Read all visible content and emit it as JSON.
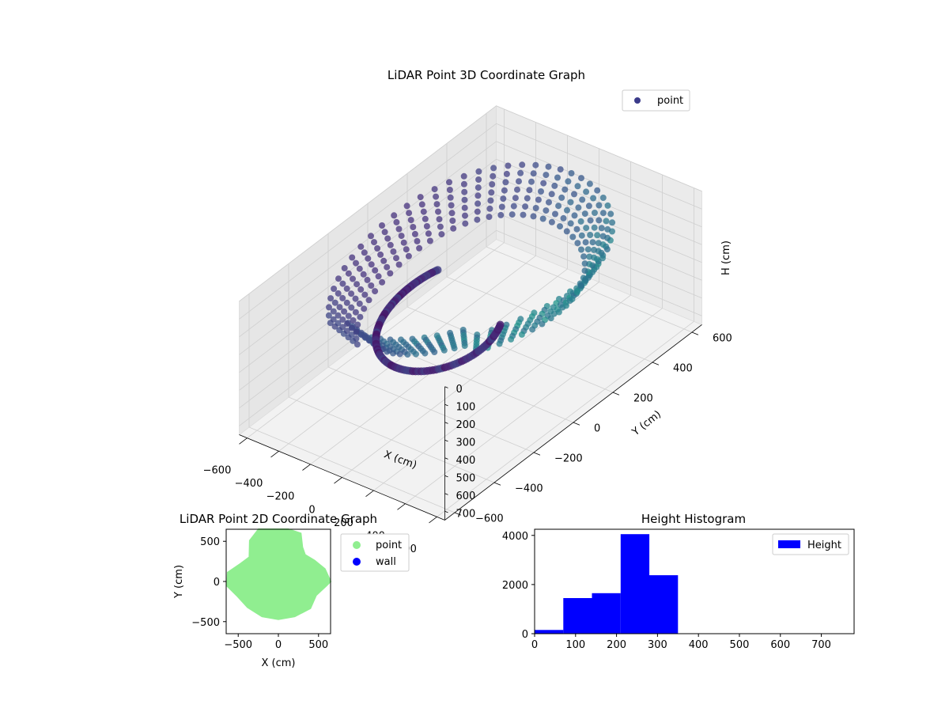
{
  "chart_data": [
    {
      "type": "scatter3d",
      "title": "LiDAR Point 3D Coordinate Graph",
      "xlabel": "X (cm)",
      "ylabel": "Y (cm)",
      "zlabel": "H (cm)",
      "xlim": [
        -650,
        650
      ],
      "ylim": [
        -650,
        650
      ],
      "zlim": [
        750,
        0
      ],
      "xticks": [
        -600,
        -400,
        -200,
        0,
        200,
        400,
        600
      ],
      "yticks": [
        -600,
        -400,
        -200,
        0,
        200,
        400,
        600
      ],
      "zticks": [
        0,
        100,
        200,
        300,
        400,
        500,
        600,
        700
      ],
      "legend": [
        {
          "label": "point",
          "color": "#3b3b8a"
        }
      ],
      "legend_position": "top-right",
      "colormap": "viridis",
      "grid": true
    },
    {
      "type": "scatter",
      "title": "LiDAR Point 2D Coordinate Graph",
      "xlabel": "X (cm)",
      "ylabel": "Y (cm)",
      "xlim": [
        -650,
        650
      ],
      "ylim": [
        -650,
        650
      ],
      "xticks": [
        -500,
        0,
        500
      ],
      "yticks": [
        -500,
        0,
        500
      ],
      "legend": [
        {
          "label": "point",
          "color": "#90ee90"
        },
        {
          "label": "wall",
          "color": "#0000ff"
        }
      ],
      "legend_position": "outside-right",
      "outline_polar": [
        [
          0,
          650
        ],
        [
          15,
          600
        ],
        [
          30,
          520
        ],
        [
          45,
          470
        ],
        [
          55,
          520
        ],
        [
          65,
          660
        ],
        [
          80,
          710
        ],
        [
          95,
          700
        ],
        [
          110,
          720
        ],
        [
          125,
          620
        ],
        [
          140,
          470
        ],
        [
          155,
          520
        ],
        [
          170,
          640
        ],
        [
          185,
          640
        ],
        [
          200,
          540
        ],
        [
          220,
          500
        ],
        [
          245,
          480
        ],
        [
          270,
          470
        ],
        [
          295,
          480
        ],
        [
          320,
          520
        ],
        [
          340,
          500
        ],
        [
          355,
          600
        ]
      ]
    },
    {
      "type": "bar",
      "title": "Height Histogram",
      "xlabel": "",
      "ylabel": "",
      "xlim": [
        0,
        780
      ],
      "ylim": [
        0,
        4250
      ],
      "xticks": [
        0,
        100,
        200,
        300,
        400,
        500,
        600,
        700
      ],
      "yticks": [
        0,
        2000,
        4000
      ],
      "bins": [
        [
          0,
          70,
          150
        ],
        [
          70,
          140,
          1450
        ],
        [
          140,
          210,
          1650
        ],
        [
          210,
          280,
          4050
        ],
        [
          280,
          350,
          2380
        ],
        [
          350,
          420,
          0
        ],
        [
          420,
          490,
          0
        ],
        [
          490,
          560,
          0
        ],
        [
          560,
          630,
          0
        ],
        [
          630,
          700,
          0
        ]
      ],
      "series": [
        {
          "name": "Height",
          "color": "#0000ff"
        }
      ],
      "legend_position": "top-right"
    }
  ]
}
